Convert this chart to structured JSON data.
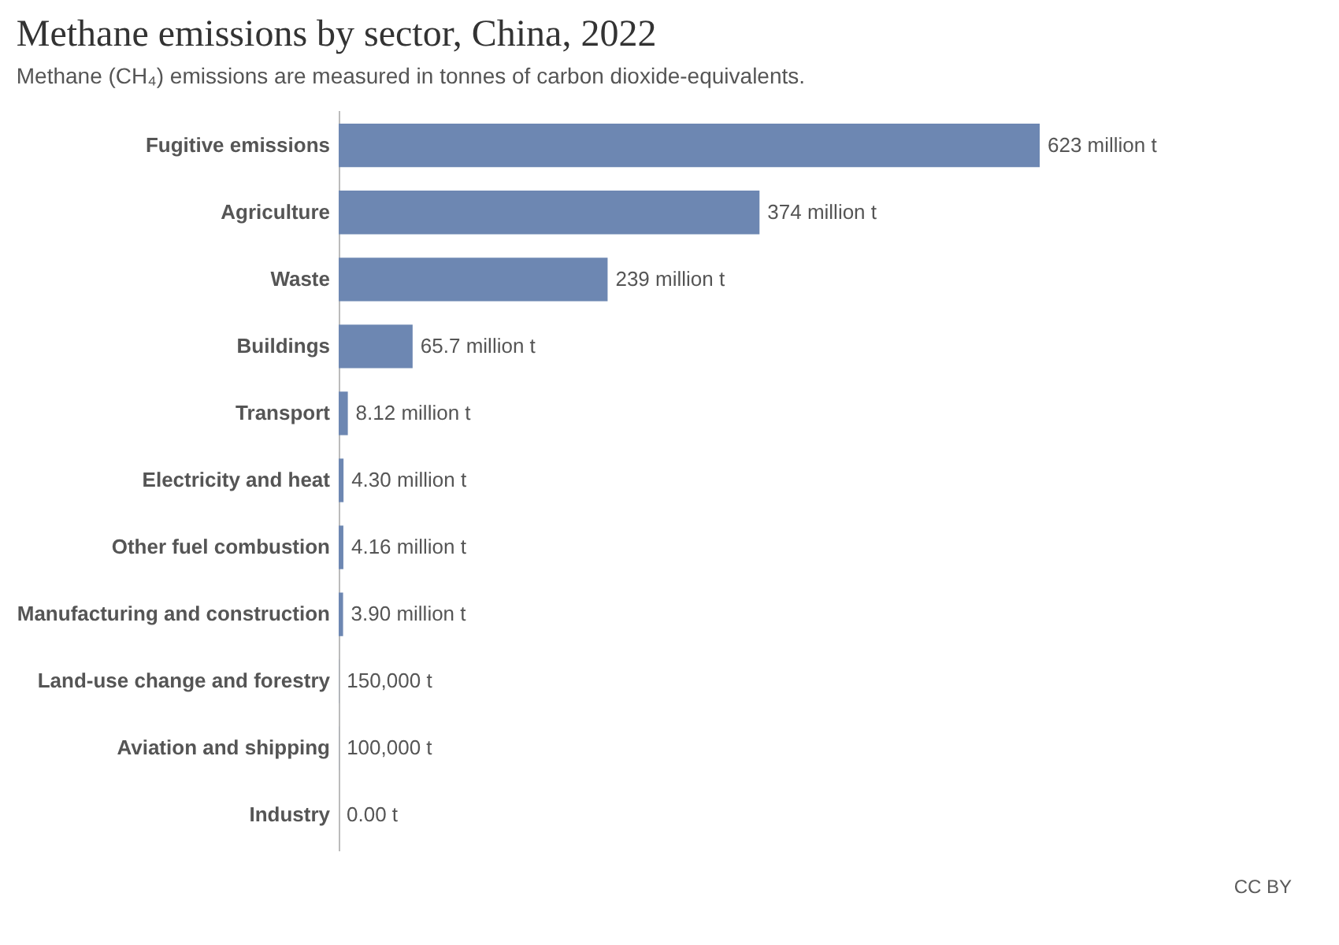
{
  "chart_data": {
    "type": "bar",
    "orientation": "horizontal",
    "title": "Methane emissions by sector, China, 2022",
    "subtitle": "Methane (CH₄) emissions are measured in tonnes of carbon dioxide-equivalents.",
    "categories": [
      "Fugitive emissions",
      "Agriculture",
      "Waste",
      "Buildings",
      "Transport",
      "Electricity and heat",
      "Other fuel combustion",
      "Manufacturing and construction",
      "Land-use change and forestry",
      "Aviation and shipping",
      "Industry"
    ],
    "series": [
      {
        "color": "#6d87b2",
        "values": [
          623000000,
          374000000,
          239000000,
          65700000,
          8120000,
          4300000,
          4160000,
          3900000,
          150000,
          100000,
          0
        ],
        "value_labels": [
          "623 million t",
          "374 million t",
          "239 million t",
          "65.7 million t",
          "8.12 million t",
          "4.30 million t",
          "4.16 million t",
          "3.90 million t",
          "150,000 t",
          "100,000 t",
          "0.00 t"
        ]
      }
    ],
    "grid": false,
    "tick_labels": "y",
    "annotations": [
      "CC BY"
    ]
  }
}
